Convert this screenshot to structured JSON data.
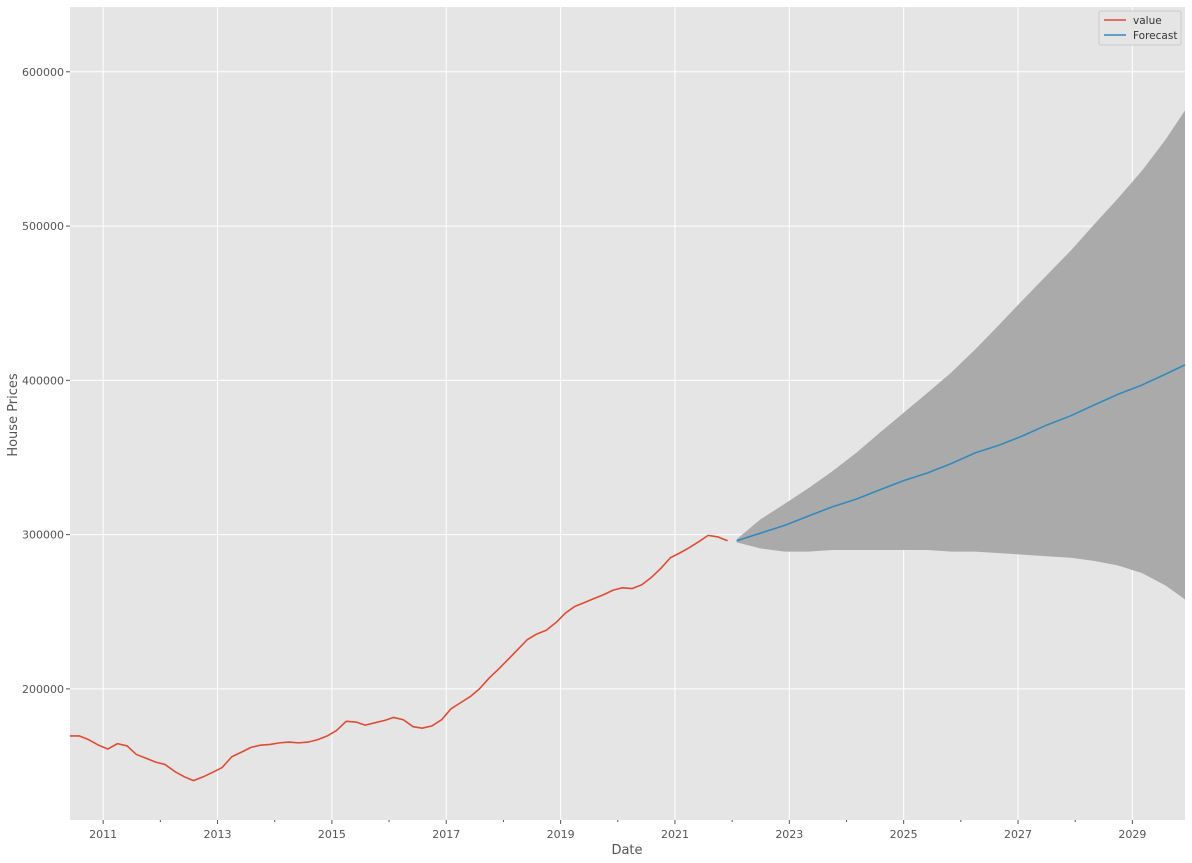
{
  "chart_data": {
    "type": "line",
    "xlabel": "Date",
    "ylabel": "House Prices",
    "xlim": [
      2010.42,
      2029.92
    ],
    "ylim": [
      115000,
      642000
    ],
    "grid": true,
    "legend_position": "top-right",
    "x_ticks": [
      {
        "value": 2011,
        "label": "2011"
      },
      {
        "value": 2013,
        "label": "2013"
      },
      {
        "value": 2015,
        "label": "2015"
      },
      {
        "value": 2017,
        "label": "2017"
      },
      {
        "value": 2019,
        "label": "2019"
      },
      {
        "value": 2021,
        "label": "2021"
      },
      {
        "value": 2023,
        "label": "2023"
      },
      {
        "value": 2025,
        "label": "2025"
      },
      {
        "value": 2027,
        "label": "2027"
      },
      {
        "value": 2029,
        "label": "2029"
      }
    ],
    "y_ticks": [
      {
        "value": 200000,
        "label": "200000"
      },
      {
        "value": 300000,
        "label": "300000"
      },
      {
        "value": 400000,
        "label": "400000"
      },
      {
        "value": 500000,
        "label": "500000"
      },
      {
        "value": 600000,
        "label": "600000"
      }
    ],
    "colors": {
      "value": "#e24a33",
      "forecast": "#348abd",
      "interval": "#aaaaaa",
      "panel": "#e5e5e5",
      "grid": "#ffffff"
    },
    "series": [
      {
        "name": "value",
        "points": [
          [
            2010.42,
            169500
          ],
          [
            2010.58,
            169500
          ],
          [
            2010.75,
            167000
          ],
          [
            2010.92,
            163500
          ],
          [
            2011.08,
            161000
          ],
          [
            2011.25,
            164500
          ],
          [
            2011.42,
            163000
          ],
          [
            2011.58,
            157500
          ],
          [
            2011.75,
            155000
          ],
          [
            2011.92,
            152500
          ],
          [
            2012.08,
            151000
          ],
          [
            2012.25,
            146500
          ],
          [
            2012.42,
            143000
          ],
          [
            2012.58,
            140500
          ],
          [
            2012.75,
            143000
          ],
          [
            2012.92,
            146000
          ],
          [
            2013.08,
            149000
          ],
          [
            2013.25,
            156000
          ],
          [
            2013.42,
            159000
          ],
          [
            2013.58,
            162000
          ],
          [
            2013.75,
            163500
          ],
          [
            2013.92,
            164000
          ],
          [
            2014.08,
            165000
          ],
          [
            2014.25,
            165500
          ],
          [
            2014.42,
            165000
          ],
          [
            2014.58,
            165500
          ],
          [
            2014.75,
            167000
          ],
          [
            2014.92,
            169500
          ],
          [
            2015.08,
            173000
          ],
          [
            2015.25,
            179000
          ],
          [
            2015.42,
            178500
          ],
          [
            2015.58,
            176500
          ],
          [
            2015.75,
            178000
          ],
          [
            2015.92,
            179500
          ],
          [
            2016.08,
            181500
          ],
          [
            2016.25,
            180000
          ],
          [
            2016.42,
            175500
          ],
          [
            2016.58,
            174500
          ],
          [
            2016.75,
            176000
          ],
          [
            2016.92,
            180000
          ],
          [
            2017.08,
            187000
          ],
          [
            2017.25,
            191000
          ],
          [
            2017.42,
            195000
          ],
          [
            2017.58,
            200000
          ],
          [
            2017.75,
            207000
          ],
          [
            2017.92,
            213000
          ],
          [
            2018.08,
            219000
          ],
          [
            2018.25,
            225500
          ],
          [
            2018.42,
            232000
          ],
          [
            2018.58,
            235500
          ],
          [
            2018.75,
            238000
          ],
          [
            2018.92,
            243000
          ],
          [
            2019.08,
            249000
          ],
          [
            2019.25,
            253500
          ],
          [
            2019.42,
            256000
          ],
          [
            2019.58,
            258500
          ],
          [
            2019.75,
            261000
          ],
          [
            2019.92,
            264000
          ],
          [
            2020.08,
            265500
          ],
          [
            2020.25,
            265000
          ],
          [
            2020.42,
            267500
          ],
          [
            2020.58,
            272000
          ],
          [
            2020.75,
            278000
          ],
          [
            2020.92,
            285000
          ],
          [
            2021.08,
            288000
          ],
          [
            2021.25,
            291500
          ],
          [
            2021.42,
            295500
          ],
          [
            2021.58,
            299500
          ],
          [
            2021.75,
            298500
          ],
          [
            2021.92,
            296000
          ]
        ]
      },
      {
        "name": "Forecast",
        "points": [
          [
            2022.08,
            296000
          ],
          [
            2022.5,
            301000
          ],
          [
            2022.92,
            306000
          ],
          [
            2023.33,
            312000
          ],
          [
            2023.75,
            318000
          ],
          [
            2024.17,
            323000
          ],
          [
            2024.58,
            329000
          ],
          [
            2025.0,
            335000
          ],
          [
            2025.42,
            340000
          ],
          [
            2025.83,
            346000
          ],
          [
            2026.25,
            353000
          ],
          [
            2026.67,
            358000
          ],
          [
            2027.08,
            364000
          ],
          [
            2027.5,
            371000
          ],
          [
            2027.92,
            377000
          ],
          [
            2028.33,
            384000
          ],
          [
            2028.75,
            391000
          ],
          [
            2029.17,
            397000
          ],
          [
            2029.58,
            404000
          ],
          [
            2029.92,
            410000
          ]
        ]
      }
    ],
    "confidence_interval": {
      "upper": [
        [
          2022.08,
          297000
        ],
        [
          2022.5,
          310000
        ],
        [
          2022.92,
          320000
        ],
        [
          2023.33,
          330000
        ],
        [
          2023.75,
          341000
        ],
        [
          2024.17,
          353000
        ],
        [
          2024.58,
          366000
        ],
        [
          2025.0,
          379000
        ],
        [
          2025.42,
          392000
        ],
        [
          2025.83,
          405000
        ],
        [
          2026.25,
          420000
        ],
        [
          2026.67,
          436000
        ],
        [
          2027.08,
          452000
        ],
        [
          2027.5,
          468000
        ],
        [
          2027.92,
          484000
        ],
        [
          2028.33,
          501000
        ],
        [
          2028.75,
          518000
        ],
        [
          2029.17,
          536000
        ],
        [
          2029.58,
          556000
        ],
        [
          2029.92,
          575000
        ]
      ],
      "lower": [
        [
          2022.08,
          295000
        ],
        [
          2022.5,
          291000
        ],
        [
          2022.92,
          289000
        ],
        [
          2023.33,
          289000
        ],
        [
          2023.75,
          290000
        ],
        [
          2024.17,
          290000
        ],
        [
          2024.58,
          290000
        ],
        [
          2025.0,
          290000
        ],
        [
          2025.42,
          290000
        ],
        [
          2025.83,
          289000
        ],
        [
          2026.25,
          289000
        ],
        [
          2026.67,
          288000
        ],
        [
          2027.08,
          287000
        ],
        [
          2027.5,
          286000
        ],
        [
          2027.92,
          285000
        ],
        [
          2028.33,
          283000
        ],
        [
          2028.75,
          280000
        ],
        [
          2029.17,
          275000
        ],
        [
          2029.58,
          267000
        ],
        [
          2029.92,
          258000
        ]
      ]
    }
  }
}
